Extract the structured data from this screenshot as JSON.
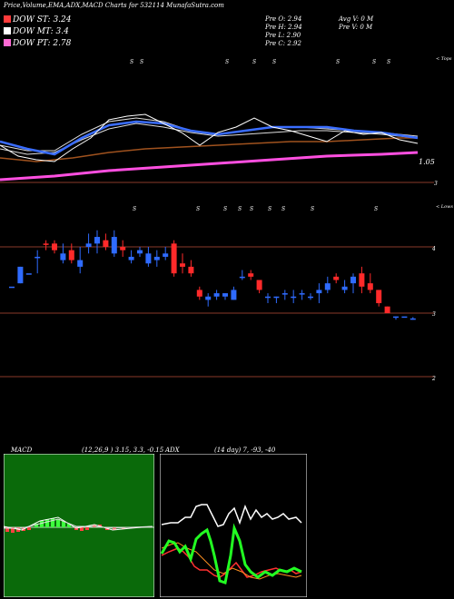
{
  "header": {
    "title": "Price,Volume,EMA,ADX,MACD Charts for 532114  MunafaSutra.com",
    "legend": [
      {
        "label": "DOW ST: 3.24",
        "color": "#ff3b3b"
      },
      {
        "label": "DOW MT: 3.4",
        "color": "#ffffff"
      },
      {
        "label": "DOW PT: 2.78",
        "color": "#ff6ad5"
      }
    ],
    "stats": [
      "Pre   O: 2.94",
      "Pre   H: 2.94",
      "Pre   L: 2.90",
      "Pre   C: 2.92"
    ],
    "avg": [
      "Avg V: 0   M",
      "Pre   V: 0   M"
    ]
  },
  "ema_panel": {
    "label_right": "< Tops",
    "value_label": "1.05",
    "level_label": "3",
    "markers": [
      "S",
      "S",
      "S",
      "S",
      "S",
      "S",
      "S",
      "S"
    ]
  },
  "candle_panel": {
    "label_right": "< Lows",
    "axis_labels": [
      "4",
      "3",
      "2"
    ],
    "markers": [
      "S",
      "S",
      "S",
      "S",
      "S",
      "S",
      "S",
      "S",
      "S"
    ]
  },
  "macd": {
    "title": "MACD",
    "params": "(12,26,9 ) 3.15,  3.3,  -0.15"
  },
  "adx": {
    "title": "ADX",
    "params": "(14  day) 7,  -93,  -40"
  },
  "chart_data": {
    "type": "candlestick",
    "y_axis_ticks": [
      4,
      3,
      2
    ],
    "candles": [
      {
        "o": 3.4,
        "h": 3.4,
        "l": 3.4,
        "c": 3.4,
        "up": true
      },
      {
        "o": 3.45,
        "h": 3.7,
        "l": 3.45,
        "c": 3.7,
        "up": true
      },
      {
        "o": 3.6,
        "h": 3.6,
        "l": 3.6,
        "c": 3.6,
        "up": true
      },
      {
        "o": 3.85,
        "h": 3.95,
        "l": 3.6,
        "c": 3.85,
        "up": true
      },
      {
        "o": 4.05,
        "h": 4.1,
        "l": 3.95,
        "c": 4.05,
        "up": false
      },
      {
        "o": 4.05,
        "h": 4.1,
        "l": 3.9,
        "c": 3.95,
        "up": false
      },
      {
        "o": 3.9,
        "h": 4.05,
        "l": 3.75,
        "c": 3.8,
        "up": true
      },
      {
        "o": 3.95,
        "h": 4.05,
        "l": 3.75,
        "c": 3.8,
        "up": false
      },
      {
        "o": 3.8,
        "h": 4.0,
        "l": 3.6,
        "c": 3.7,
        "up": true
      },
      {
        "o": 4.0,
        "h": 4.2,
        "l": 3.9,
        "c": 4.05,
        "up": true
      },
      {
        "o": 4.05,
        "h": 4.25,
        "l": 3.9,
        "c": 4.15,
        "up": true
      },
      {
        "o": 4.1,
        "h": 4.2,
        "l": 3.95,
        "c": 4.0,
        "up": false
      },
      {
        "o": 4.15,
        "h": 4.25,
        "l": 3.85,
        "c": 3.9,
        "up": true
      },
      {
        "o": 3.95,
        "h": 4.1,
        "l": 3.85,
        "c": 4.0,
        "up": false
      },
      {
        "o": 3.85,
        "h": 3.95,
        "l": 3.75,
        "c": 3.8,
        "up": true
      },
      {
        "o": 3.95,
        "h": 4.0,
        "l": 3.85,
        "c": 3.9,
        "up": true
      },
      {
        "o": 3.9,
        "h": 4.0,
        "l": 3.7,
        "c": 3.75,
        "up": true
      },
      {
        "o": 3.8,
        "h": 3.95,
        "l": 3.7,
        "c": 3.85,
        "up": true
      },
      {
        "o": 3.85,
        "h": 4.0,
        "l": 3.8,
        "c": 3.9,
        "up": true
      },
      {
        "o": 4.05,
        "h": 4.1,
        "l": 3.55,
        "c": 3.6,
        "up": false
      },
      {
        "o": 3.7,
        "h": 3.9,
        "l": 3.6,
        "c": 3.75,
        "up": false
      },
      {
        "o": 3.6,
        "h": 3.8,
        "l": 3.55,
        "c": 3.7,
        "up": false
      },
      {
        "o": 3.35,
        "h": 3.4,
        "l": 3.2,
        "c": 3.25,
        "up": false
      },
      {
        "o": 3.2,
        "h": 3.3,
        "l": 3.1,
        "c": 3.25,
        "up": true
      },
      {
        "o": 3.3,
        "h": 3.35,
        "l": 3.2,
        "c": 3.25,
        "up": true
      },
      {
        "o": 3.3,
        "h": 3.3,
        "l": 3.2,
        "c": 3.25,
        "up": true
      },
      {
        "o": 3.2,
        "h": 3.4,
        "l": 3.2,
        "c": 3.35,
        "up": true
      },
      {
        "o": 3.55,
        "h": 3.65,
        "l": 3.5,
        "c": 3.55,
        "up": true
      },
      {
        "o": 3.6,
        "h": 3.65,
        "l": 3.5,
        "c": 3.55,
        "up": false
      },
      {
        "o": 3.5,
        "h": 3.5,
        "l": 3.3,
        "c": 3.35,
        "up": false
      },
      {
        "o": 3.25,
        "h": 3.3,
        "l": 3.15,
        "c": 3.25,
        "up": true
      },
      {
        "o": 3.25,
        "h": 3.25,
        "l": 3.15,
        "c": 3.25,
        "up": true
      },
      {
        "o": 3.3,
        "h": 3.35,
        "l": 3.2,
        "c": 3.3,
        "up": true
      },
      {
        "o": 3.25,
        "h": 3.35,
        "l": 3.15,
        "c": 3.25,
        "up": true
      },
      {
        "o": 3.3,
        "h": 3.35,
        "l": 3.2,
        "c": 3.3,
        "up": true
      },
      {
        "o": 3.25,
        "h": 3.3,
        "l": 3.2,
        "c": 3.25,
        "up": true
      },
      {
        "o": 3.35,
        "h": 3.45,
        "l": 3.15,
        "c": 3.3,
        "up": true
      },
      {
        "o": 3.45,
        "h": 3.55,
        "l": 3.3,
        "c": 3.35,
        "up": true
      },
      {
        "o": 3.55,
        "h": 3.6,
        "l": 3.45,
        "c": 3.5,
        "up": false
      },
      {
        "o": 3.4,
        "h": 3.5,
        "l": 3.3,
        "c": 3.35,
        "up": true
      },
      {
        "o": 3.45,
        "h": 3.6,
        "l": 3.3,
        "c": 3.55,
        "up": true
      },
      {
        "o": 3.6,
        "h": 3.7,
        "l": 3.3,
        "c": 3.4,
        "up": false
      },
      {
        "o": 3.45,
        "h": 3.6,
        "l": 3.3,
        "c": 3.35,
        "up": false
      },
      {
        "o": 3.35,
        "h": 3.35,
        "l": 3.1,
        "c": 3.15,
        "up": false
      },
      {
        "o": 3.1,
        "h": 3.1,
        "l": 3.0,
        "c": 3.0,
        "up": false
      },
      {
        "o": 2.95,
        "h": 2.95,
        "l": 2.9,
        "c": 2.95,
        "up": true
      },
      {
        "o": 2.95,
        "h": 2.95,
        "l": 2.95,
        "c": 2.95,
        "up": true
      },
      {
        "o": 2.92,
        "h": 2.94,
        "l": 2.9,
        "c": 2.92,
        "up": true
      }
    ]
  }
}
